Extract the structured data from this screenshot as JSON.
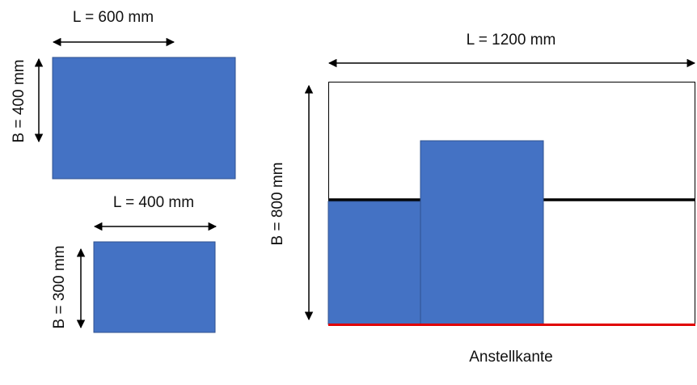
{
  "small_box_1": {
    "length_label": "L = 600 mm",
    "width_label": "B = 400 mm"
  },
  "small_box_2": {
    "length_label": "L = 400 mm",
    "width_label": "B = 300 mm"
  },
  "pallet": {
    "length_label": "L = 1200 mm",
    "width_label": "B = 800 mm",
    "edge_label": "Anstellkante"
  }
}
